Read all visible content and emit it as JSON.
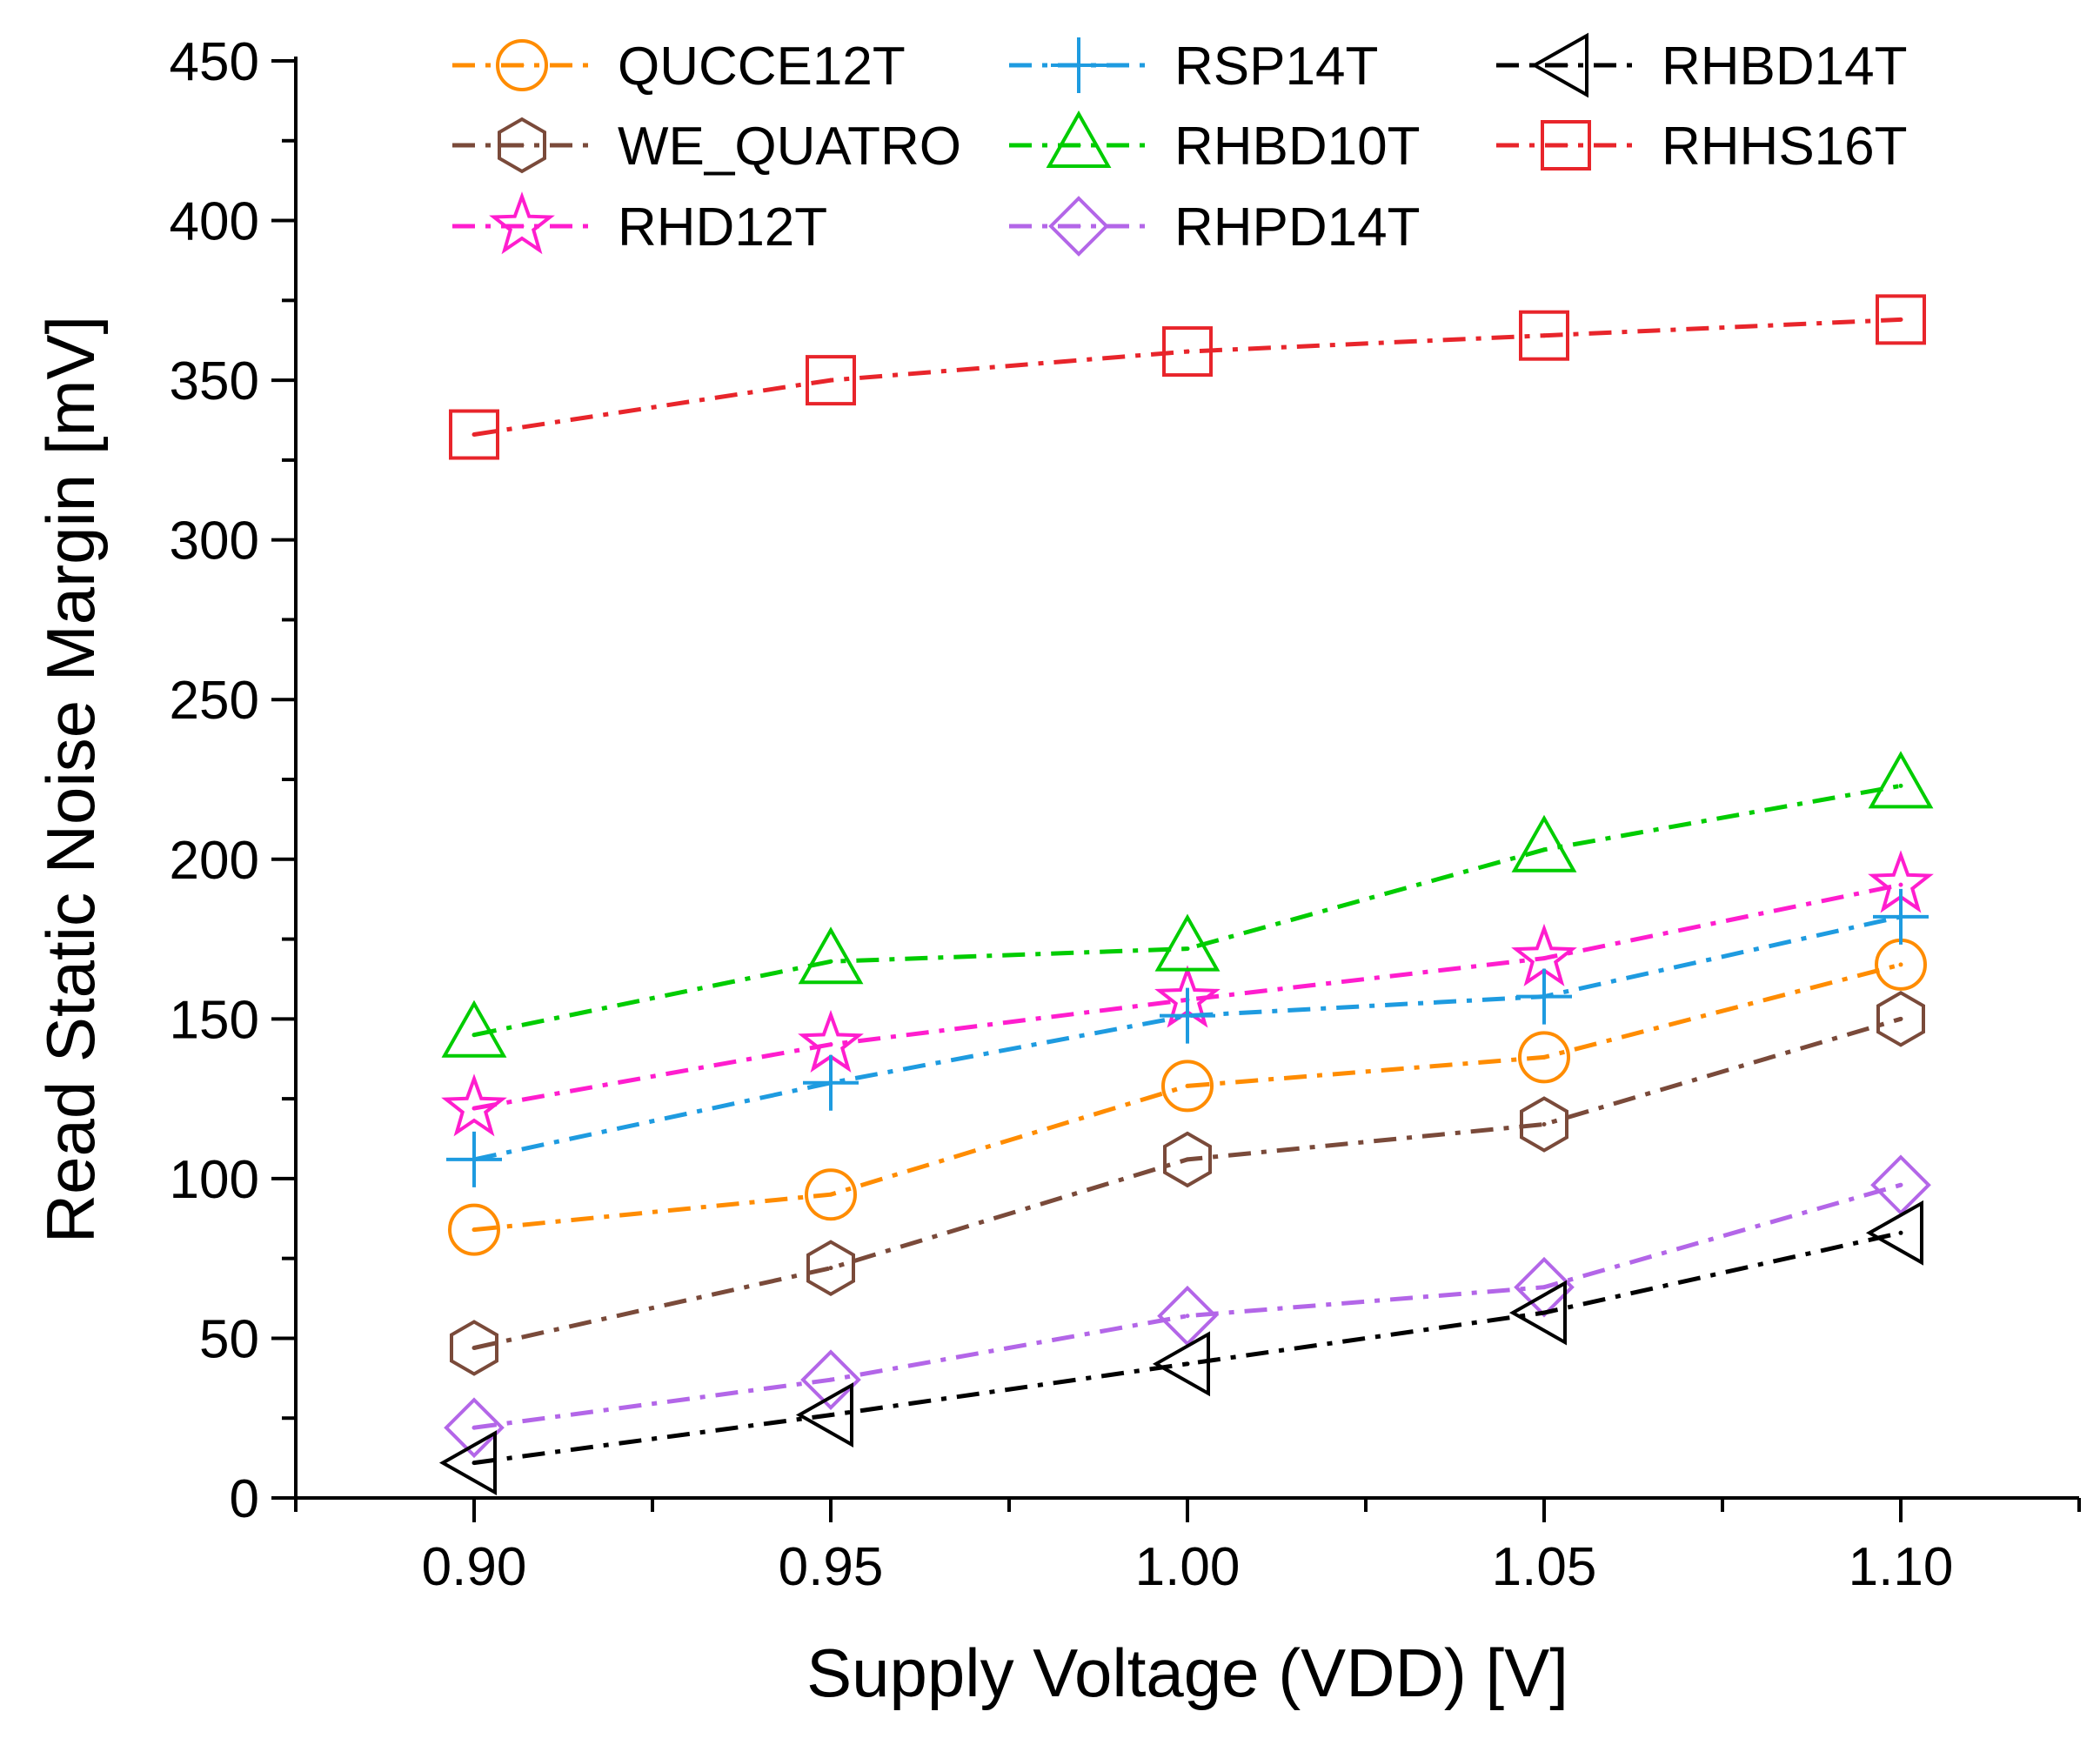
{
  "chart_data": {
    "type": "line",
    "title": "",
    "xlabel": "Supply Voltage (VDD) [V]",
    "ylabel": "Read Static Noise Margin [mV]",
    "x": [
      0.9,
      0.95,
      1.0,
      1.05,
      1.1
    ],
    "x_tick_labels": [
      "0.90",
      "0.95",
      "1.00",
      "1.05",
      "1.10"
    ],
    "xlim": [
      0.875,
      1.125
    ],
    "ylim": [
      0,
      450
    ],
    "y_ticks": [
      0,
      50,
      100,
      150,
      200,
      250,
      300,
      350,
      400,
      450
    ],
    "grid": false,
    "legend_position": "top",
    "series": [
      {
        "name": "QUCCE12T",
        "marker": "circle",
        "color": "#FF8C00",
        "values": [
          84,
          95,
          129,
          138,
          167
        ]
      },
      {
        "name": "WE_QUATRO",
        "marker": "hexagon",
        "color": "#7A4A3A",
        "values": [
          47,
          72,
          106,
          117,
          150
        ]
      },
      {
        "name": "RHD12T",
        "marker": "star",
        "color": "#FF1DCE",
        "values": [
          122,
          142,
          156,
          169,
          192
        ]
      },
      {
        "name": "RSP14T",
        "marker": "plus",
        "color": "#1E9BE0",
        "values": [
          106,
          130,
          151,
          157,
          182
        ]
      },
      {
        "name": "RHBD10T",
        "marker": "triangle-up",
        "color": "#00CC00",
        "values": [
          145,
          168,
          172,
          203,
          223
        ]
      },
      {
        "name": "RHPD14T",
        "marker": "diamond",
        "color": "#B366E8",
        "values": [
          22,
          37,
          57,
          66,
          98
        ]
      },
      {
        "name": "RHBD14T",
        "marker": "triangle-left",
        "color": "#000000",
        "values": [
          11,
          26,
          42,
          58,
          83
        ]
      },
      {
        "name": "RHHS16T",
        "marker": "square",
        "color": "#E8252B",
        "values": [
          333,
          350,
          359,
          364,
          369
        ]
      }
    ]
  }
}
